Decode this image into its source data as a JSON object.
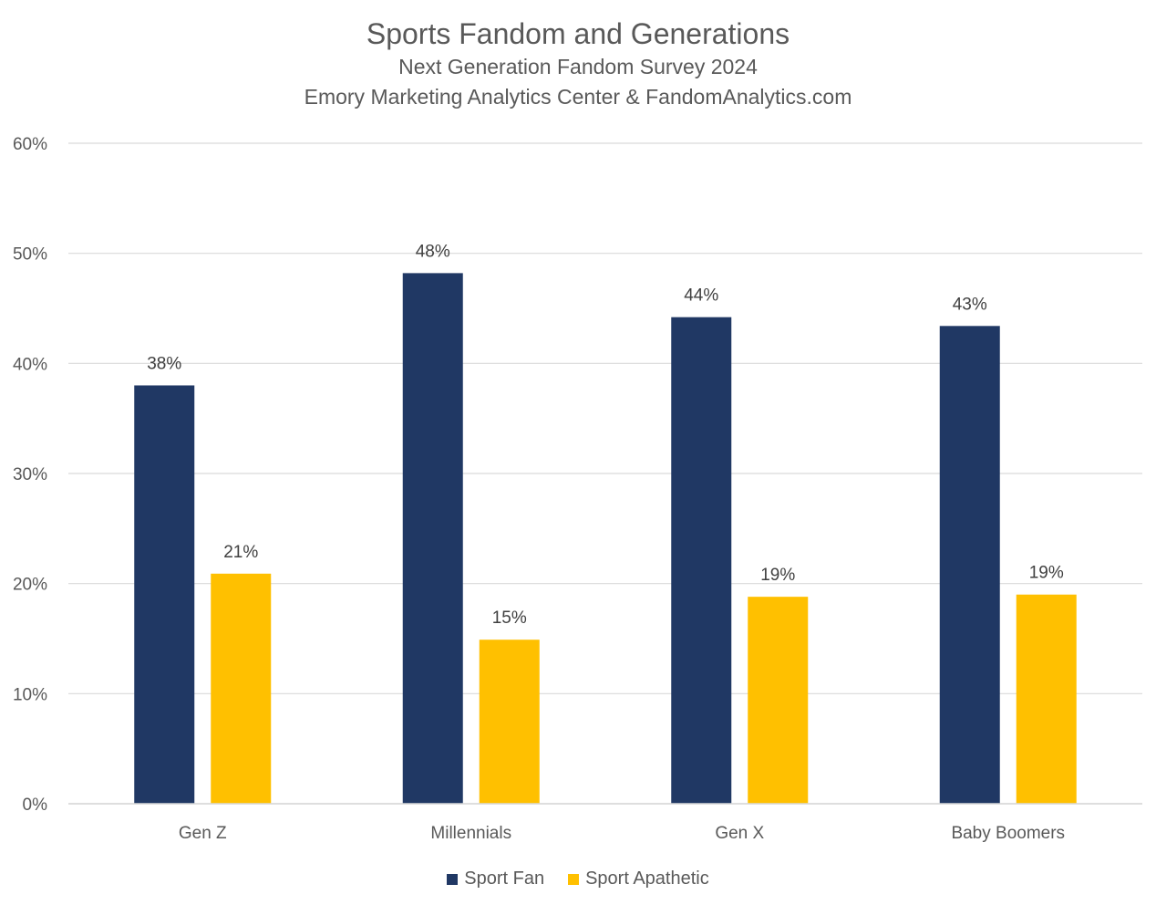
{
  "chart_data": {
    "type": "bar",
    "title": "Sports Fandom and Generations",
    "subtitles": [
      "Next Generation Fandom Survey 2024",
      "Emory Marketing Analytics Center & FandomAnalytics.com"
    ],
    "categories": [
      "Gen Z",
      "Millennials",
      "Gen X",
      "Baby Boomers"
    ],
    "series": [
      {
        "name": "Sport Fan",
        "color": "#203864",
        "values": [
          0.38,
          0.482,
          0.442,
          0.434
        ],
        "labels": [
          "38%",
          "48%",
          "44%",
          "43%"
        ]
      },
      {
        "name": "Sport Apathetic",
        "color": "#FFC000",
        "values": [
          0.209,
          0.149,
          0.188,
          0.19
        ],
        "labels": [
          "21%",
          "15%",
          "19%",
          "19%"
        ]
      }
    ],
    "ylim": [
      0,
      0.6
    ],
    "yticks": [
      "0%",
      "10%",
      "20%",
      "30%",
      "40%",
      "50%",
      "60%"
    ],
    "grid": true,
    "legend_position": "bottom",
    "gridline_color": "#D9D9D9"
  }
}
